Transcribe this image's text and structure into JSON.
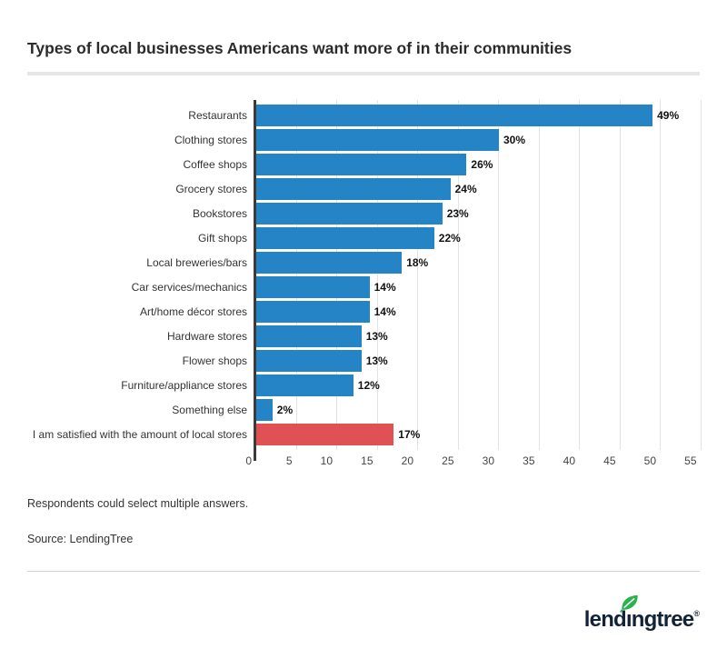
{
  "title": "Types of local businesses Americans want more of in their communities",
  "footnotes": {
    "note": "Respondents could select multiple answers.",
    "source": "Source: LendingTree"
  },
  "logo": {
    "text": "lendingtree",
    "registered": "®",
    "leaf_icon": "leaf-icon"
  },
  "colors": {
    "bar_blue": "#2484c6",
    "bar_red": "#e05156",
    "axis": "#3b3b3b",
    "grid": "#e3e3e3",
    "logo_navy": "#122338",
    "leaf_green": "#2db14f"
  },
  "chart_data": {
    "type": "bar",
    "orientation": "horizontal",
    "title": "Types of local businesses Americans want more of in their communities",
    "categories": [
      "Restaurants",
      "Clothing stores",
      "Coffee shops",
      "Grocery stores",
      "Bookstores",
      "Gift shops",
      "Local breweries/bars",
      "Car services/mechanics",
      "Art/home décor stores",
      "Hardware stores",
      "Flower shops",
      "Furniture/appliance stores",
      "Something else",
      "I am satisfied with the amount of local stores"
    ],
    "values": [
      49,
      30,
      26,
      24,
      23,
      22,
      18,
      14,
      14,
      13,
      13,
      12,
      2,
      17
    ],
    "value_labels": [
      "49%",
      "30%",
      "26%",
      "24%",
      "23%",
      "22%",
      "18%",
      "14%",
      "14%",
      "13%",
      "13%",
      "12%",
      "2%",
      "17%"
    ],
    "highlight_index": 13,
    "xlabel": "",
    "ylabel": "",
    "xlim": [
      0,
      55
    ],
    "xticks": [
      0,
      5,
      10,
      15,
      20,
      25,
      30,
      35,
      40,
      45,
      50,
      55
    ],
    "grid": true,
    "legend": false
  }
}
